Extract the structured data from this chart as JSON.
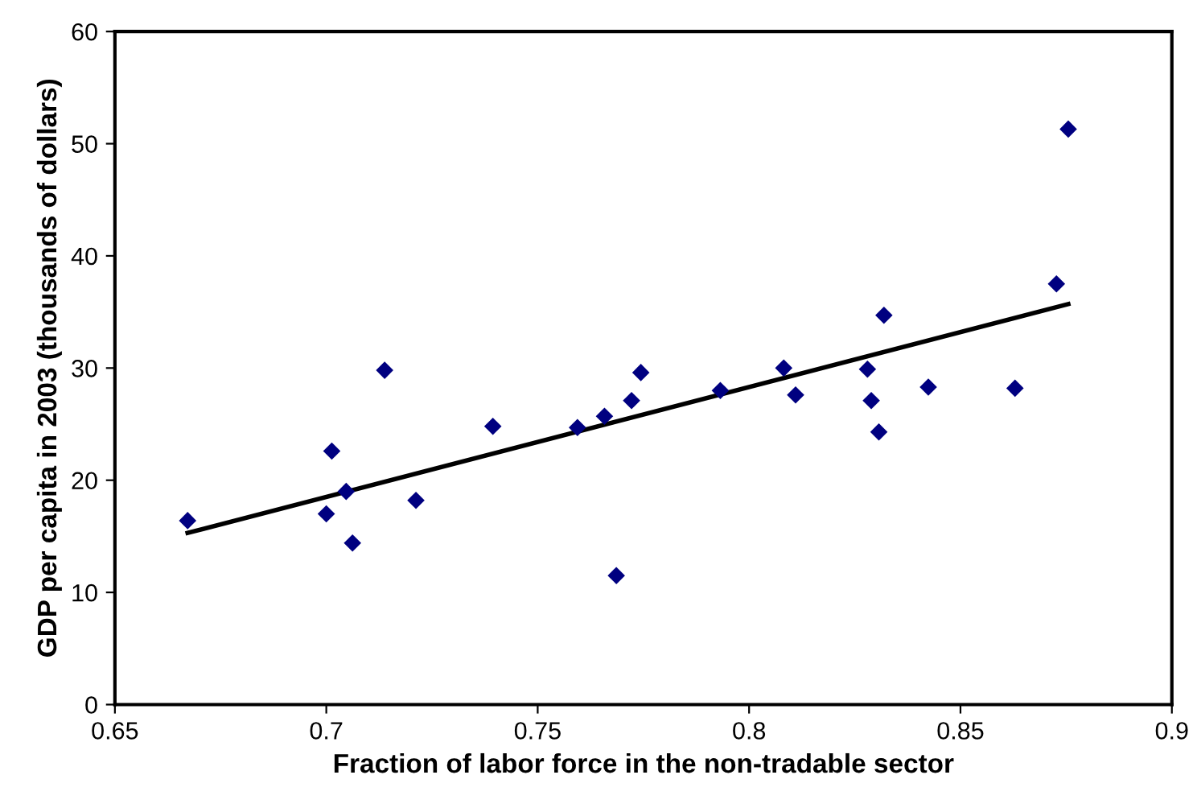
{
  "chart_data": {
    "type": "scatter",
    "xlabel": "Fraction of labor force in the non-tradable sector",
    "ylabel": "GDP per capita in 2003 (thousands of dollars)",
    "xlim": [
      0.65,
      0.9
    ],
    "ylim": [
      0,
      60
    ],
    "xticks": [
      0.65,
      0.7,
      0.75,
      0.8,
      0.85,
      0.9
    ],
    "yticks": [
      0,
      10,
      20,
      30,
      40,
      50,
      60
    ],
    "grid": false,
    "legend": false,
    "series": [
      {
        "marker": "diamond",
        "color": "#000080",
        "x": [
          0.6672,
          0.7013,
          0.7,
          0.7047,
          0.7062,
          0.7138,
          0.7212,
          0.7394,
          0.7594,
          0.7658,
          0.7722,
          0.7744,
          0.7686,
          0.7932,
          0.8082,
          0.811,
          0.828,
          0.8289,
          0.8307,
          0.8319,
          0.8424,
          0.8629,
          0.8727,
          0.8755
        ],
        "values": [
          16.4,
          22.6,
          17.0,
          19.0,
          14.4,
          29.8,
          18.2,
          24.8,
          24.7,
          25.7,
          27.1,
          29.6,
          11.5,
          28.0,
          30.0,
          27.6,
          29.9,
          27.1,
          24.3,
          34.7,
          28.3,
          28.2,
          37.5,
          51.3
        ]
      },
      {
        "type": "line",
        "marker": "none",
        "color": "#000000",
        "x": [
          0.6672,
          0.8755
        ],
        "values": [
          15.3,
          35.7
        ]
      }
    ]
  }
}
